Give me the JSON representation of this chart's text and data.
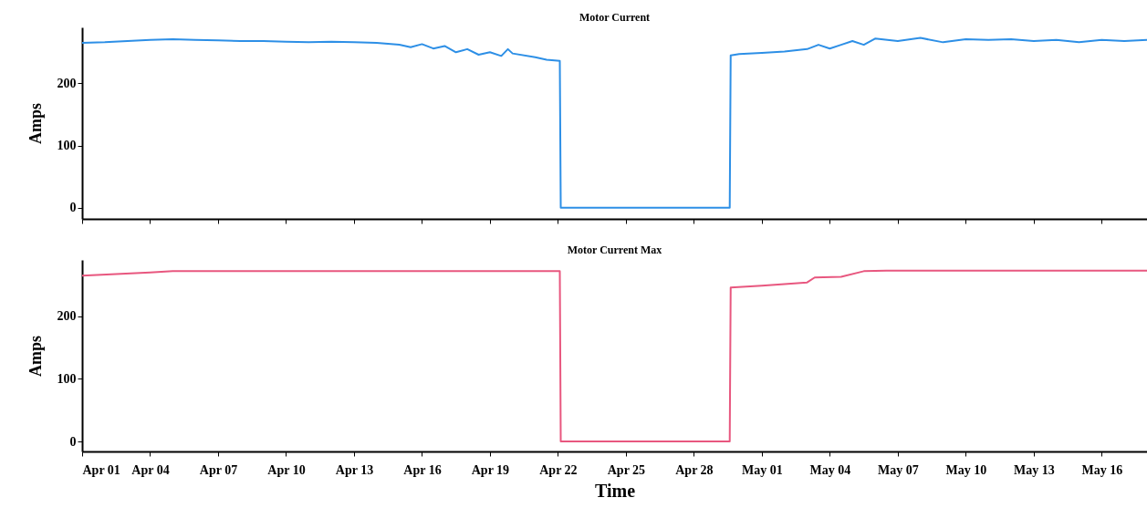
{
  "chart_data": [
    {
      "type": "line",
      "title": "Motor Current",
      "ylabel": "Amps",
      "tick_labels": "y",
      "grid": false,
      "xlim": [
        "--04-01",
        "--05-18"
      ],
      "xticks": [
        {
          "value": "--04-01",
          "label": null
        },
        {
          "value": "--04-04",
          "label": null
        },
        {
          "value": "--04-07",
          "label": null
        },
        {
          "value": "--04-10",
          "label": null
        },
        {
          "value": "--04-13",
          "label": null
        },
        {
          "value": "--04-16",
          "label": null
        },
        {
          "value": "--04-19",
          "label": null
        },
        {
          "value": "--04-22",
          "label": null
        },
        {
          "value": "--04-25",
          "label": null
        },
        {
          "value": "--04-28",
          "label": null
        },
        {
          "value": "--05-01",
          "label": null
        },
        {
          "value": "--05-04",
          "label": null
        },
        {
          "value": "--05-07",
          "label": null
        },
        {
          "value": "--05-10",
          "label": null
        },
        {
          "value": "--05-13",
          "label": null
        },
        {
          "value": "--05-16",
          "label": null
        }
      ],
      "ylim": [
        -18,
        290
      ],
      "yticks": [
        0,
        100,
        200
      ],
      "x": [
        "--04-01",
        "--04-02",
        "--04-03",
        "--04-04",
        "--04-05",
        "--04-06",
        "--04-07",
        "--04-08",
        "--04-09",
        "--04-10",
        "--04-11",
        "--04-12",
        "--04-13",
        "--04-14",
        "--04-15",
        "--04-15T12:00",
        "--04-16",
        "--04-16T12:00",
        "--04-17",
        "--04-17T12:00",
        "--04-18",
        "--04-18T12:00",
        "--04-19",
        "--04-19T12:00",
        "--04-19T19:00",
        "--04-20",
        "--04-21",
        "--04-21T12:00",
        "--04-22T02:00",
        "--04-22T03:00",
        "--04-29T14:00",
        "--04-29T15:00",
        "--04-30",
        "--05-01",
        "--05-02",
        "--05-03",
        "--05-03T12:00",
        "--05-04",
        "--05-04T12:00",
        "--05-05",
        "--05-05T12:00",
        "--05-06",
        "--05-07",
        "--05-08",
        "--05-09",
        "--05-10",
        "--05-11",
        "--05-12",
        "--05-13",
        "--05-14",
        "--05-15",
        "--05-16",
        "--05-17",
        "--05-18"
      ],
      "series": [
        {
          "color": "#2d8fe6",
          "values": [
            265,
            266,
            268,
            270,
            271,
            270,
            269,
            268,
            268,
            267,
            266,
            267,
            266,
            265,
            262,
            258,
            263,
            256,
            260,
            250,
            255,
            246,
            250,
            244,
            255,
            248,
            242,
            238,
            236,
            0,
            0,
            245,
            247,
            249,
            251,
            255,
            262,
            256,
            262,
            268,
            262,
            272,
            268,
            273,
            266,
            271,
            270,
            271,
            268,
            270,
            266,
            270,
            268,
            270
          ]
        }
      ]
    },
    {
      "type": "line",
      "title": "Motor Current Max",
      "xlabel": "Time",
      "ylabel": "Amps",
      "grid": false,
      "xlim": [
        "--04-01",
        "--05-18"
      ],
      "xticks": [
        {
          "value": "--04-01",
          "label": "Apr 01"
        },
        {
          "value": "--04-04",
          "label": "Apr 04"
        },
        {
          "value": "--04-07",
          "label": "Apr 07"
        },
        {
          "value": "--04-10",
          "label": "Apr 10"
        },
        {
          "value": "--04-13",
          "label": "Apr 13"
        },
        {
          "value": "--04-16",
          "label": "Apr 16"
        },
        {
          "value": "--04-19",
          "label": "Apr 19"
        },
        {
          "value": "--04-22",
          "label": "Apr 22"
        },
        {
          "value": "--04-25",
          "label": "Apr 25"
        },
        {
          "value": "--04-28",
          "label": "Apr 28"
        },
        {
          "value": "--05-01",
          "label": "May 01"
        },
        {
          "value": "--05-04",
          "label": "May 04"
        },
        {
          "value": "--05-07",
          "label": "May 07"
        },
        {
          "value": "--05-10",
          "label": "May 10"
        },
        {
          "value": "--05-13",
          "label": "May 13"
        },
        {
          "value": "--05-16",
          "label": "May 16"
        }
      ],
      "ylim": [
        -16,
        290
      ],
      "yticks": [
        0,
        100,
        200
      ],
      "x": [
        "--04-01",
        "--04-04",
        "--04-05",
        "--04-22T02:00",
        "--04-22T03:00",
        "--04-29T14:00",
        "--04-29T15:00",
        "--05-01",
        "--05-03",
        "--05-03T08:00",
        "--05-04T12:00",
        "--05-05T12:00",
        "--05-06T12:00",
        "--05-18"
      ],
      "series": [
        {
          "color": "#e8577f",
          "values": [
            265,
            270,
            272,
            272,
            0,
            0,
            246,
            249,
            254,
            262,
            263,
            272,
            273,
            273
          ]
        }
      ]
    }
  ]
}
